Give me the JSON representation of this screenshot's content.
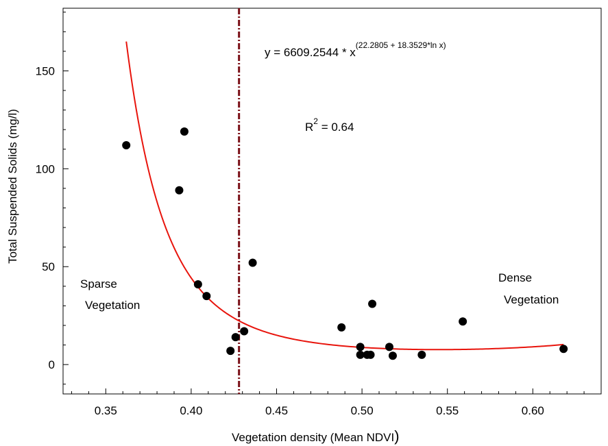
{
  "chart_data": {
    "type": "scatter",
    "xlabel": "Vegetation density (Mean  NDVI",
    "xlabel_suffix": ")",
    "ylabel": "Total Suspended Solids (mg/l)",
    "xlim": [
      0.325,
      0.64
    ],
    "ylim": [
      -15,
      182
    ],
    "x_ticks": [
      0.35,
      0.4,
      0.45,
      0.5,
      0.55,
      0.6
    ],
    "x_tick_labels": [
      "0.35",
      "0.40",
      "0.45",
      "0.50",
      "0.55",
      "0.60"
    ],
    "y_ticks": [
      0,
      50,
      100,
      150
    ],
    "y_tick_labels": [
      "0",
      "50",
      "100",
      "150"
    ],
    "grid": false,
    "points": [
      {
        "x": 0.362,
        "y": 112
      },
      {
        "x": 0.396,
        "y": 119
      },
      {
        "x": 0.393,
        "y": 89
      },
      {
        "x": 0.404,
        "y": 41
      },
      {
        "x": 0.409,
        "y": 35
      },
      {
        "x": 0.423,
        "y": 7
      },
      {
        "x": 0.426,
        "y": 14
      },
      {
        "x": 0.431,
        "y": 17
      },
      {
        "x": 0.436,
        "y": 52
      },
      {
        "x": 0.488,
        "y": 19
      },
      {
        "x": 0.499,
        "y": 9
      },
      {
        "x": 0.499,
        "y": 5
      },
      {
        "x": 0.503,
        "y": 5
      },
      {
        "x": 0.505,
        "y": 5
      },
      {
        "x": 0.506,
        "y": 31
      },
      {
        "x": 0.516,
        "y": 9
      },
      {
        "x": 0.518,
        "y": 4.5
      },
      {
        "x": 0.535,
        "y": 5
      },
      {
        "x": 0.559,
        "y": 22
      },
      {
        "x": 0.618,
        "y": 8
      }
    ],
    "fit": {
      "coefficient": 6609.2544,
      "a": 22.2805,
      "b": 18.3529,
      "x_range": [
        0.362,
        0.618
      ],
      "color": "#e8140c"
    },
    "equation_main": "y = 6609.2544 * x",
    "equation_exponent": "(22.2805 + 18.3529*ln x)",
    "r2_prefix": "R",
    "r2_exp": "2",
    "r2_value": " = 0.64",
    "threshold_x": 0.428,
    "threshold_color": "#7a0f16",
    "annotations": {
      "sparse_line1": "Sparse",
      "sparse_line2": "Vegetation",
      "dense_line1": "Dense",
      "dense_line2": "Vegetation"
    }
  }
}
